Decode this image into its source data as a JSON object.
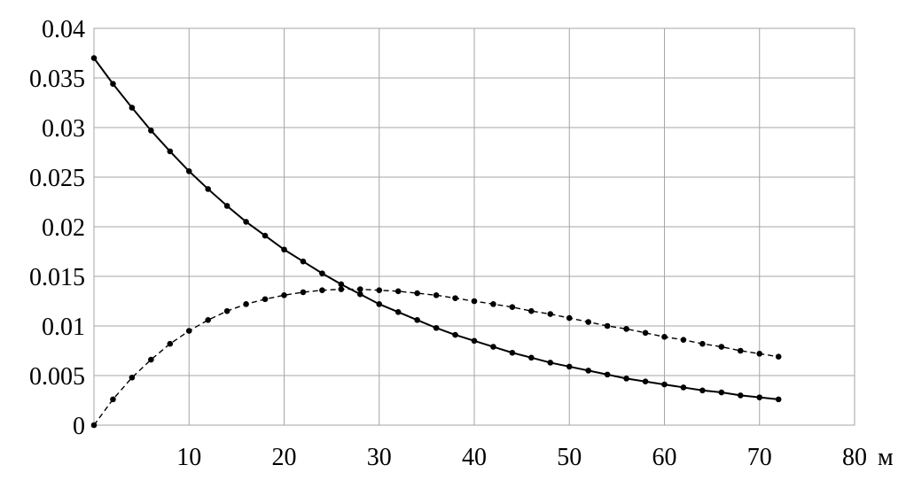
{
  "chart_data": {
    "type": "line",
    "title": "",
    "xlabel": "",
    "ylabel": "",
    "x_unit": "м",
    "xlim": [
      0,
      80
    ],
    "ylim": [
      0,
      0.04
    ],
    "x_ticks": [
      "10",
      "20",
      "30",
      "40",
      "50",
      "60",
      "70",
      "80"
    ],
    "y_ticks": [
      "0",
      "0.005",
      "0.01",
      "0.015",
      "0.02",
      "0.025",
      "0.03",
      "0.035",
      "0.04"
    ],
    "grid": true,
    "legend": "none",
    "x": [
      0,
      2,
      4,
      6,
      8,
      10,
      12,
      14,
      16,
      18,
      20,
      22,
      24,
      26,
      28,
      30,
      32,
      34,
      36,
      38,
      40,
      42,
      44,
      46,
      48,
      50,
      52,
      54,
      56,
      58,
      60,
      62,
      64,
      66,
      68,
      70,
      72
    ],
    "series": [
      {
        "style": "solid",
        "values": [
          0.037,
          0.0344,
          0.032,
          0.0297,
          0.0276,
          0.0256,
          0.0238,
          0.0221,
          0.0205,
          0.0191,
          0.0177,
          0.0165,
          0.0153,
          0.0142,
          0.0132,
          0.0122,
          0.0114,
          0.0106,
          0.0098,
          0.0091,
          0.0085,
          0.0079,
          0.0073,
          0.0068,
          0.0063,
          0.0059,
          0.0055,
          0.0051,
          0.0047,
          0.0044,
          0.0041,
          0.0038,
          0.0035,
          0.0033,
          0.003,
          0.0028,
          0.0026
        ]
      },
      {
        "style": "dashed",
        "values": [
          0.0,
          0.0026,
          0.0048,
          0.0066,
          0.0082,
          0.0095,
          0.0106,
          0.0115,
          0.0122,
          0.0127,
          0.0131,
          0.0134,
          0.0136,
          0.0137,
          0.0137,
          0.0136,
          0.0135,
          0.0133,
          0.0131,
          0.0128,
          0.0125,
          0.0122,
          0.0119,
          0.0115,
          0.0112,
          0.0108,
          0.0104,
          0.01,
          0.0097,
          0.0093,
          0.0089,
          0.0086,
          0.0082,
          0.0079,
          0.0075,
          0.0072,
          0.0069
        ]
      }
    ]
  }
}
